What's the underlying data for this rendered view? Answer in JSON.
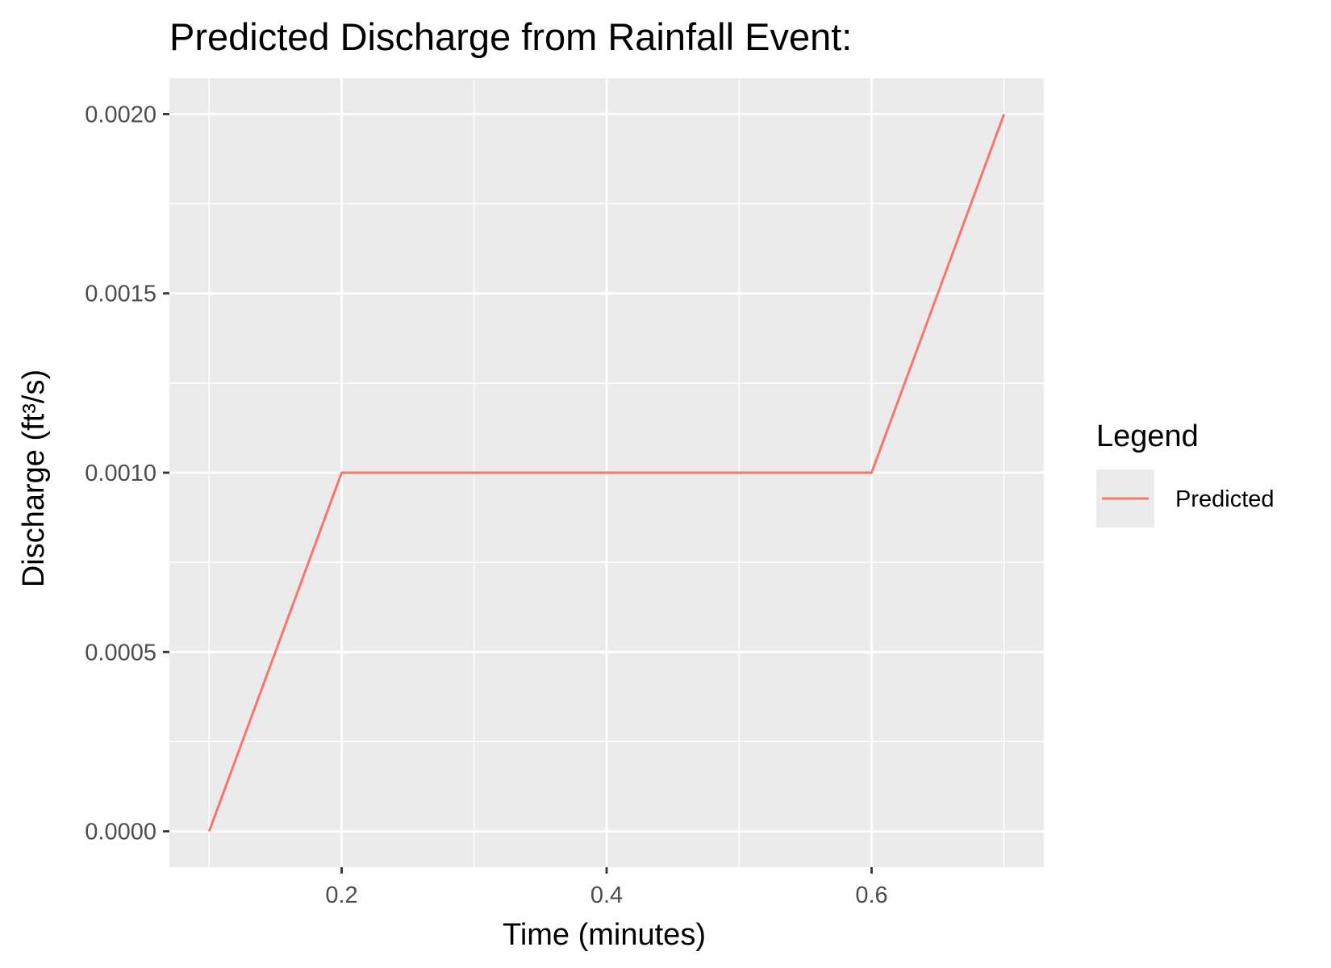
{
  "chart_data": {
    "type": "line",
    "title": "Predicted Discharge from Rainfall Event:",
    "xlabel": "Time (minutes)",
    "ylabel": "Discharge (ft³/s)",
    "xlim": [
      0.07,
      0.73
    ],
    "ylim": [
      -0.0001,
      0.0021
    ],
    "x_ticks": [
      0.2,
      0.4,
      0.6
    ],
    "x_tick_labels": [
      "0.2",
      "0.4",
      "0.6"
    ],
    "x_minor_ticks": [
      0.1,
      0.3,
      0.5,
      0.7
    ],
    "y_ticks": [
      0,
      0.0005,
      0.001,
      0.0015,
      0.002
    ],
    "y_tick_labels": [
      "0.0000",
      "0.0005",
      "0.0010",
      "0.0015",
      "0.0020"
    ],
    "y_minor_ticks": [
      0.00025,
      0.00075,
      0.00125,
      0.00175
    ],
    "grid": true,
    "legend": {
      "title": "Legend",
      "position": "right"
    },
    "series": [
      {
        "name": "Predicted",
        "color": "#F8766D",
        "x": [
          0.1,
          0.2,
          0.3,
          0.4,
          0.5,
          0.6,
          0.7
        ],
        "y": [
          0,
          0.001,
          0.001,
          0.001,
          0.001,
          0.001,
          0.002
        ]
      }
    ]
  },
  "colors": {
    "panel_background": "#EBEBEB",
    "grid_line": "#FFFFFF",
    "tick_label": "#4D4D4D"
  }
}
